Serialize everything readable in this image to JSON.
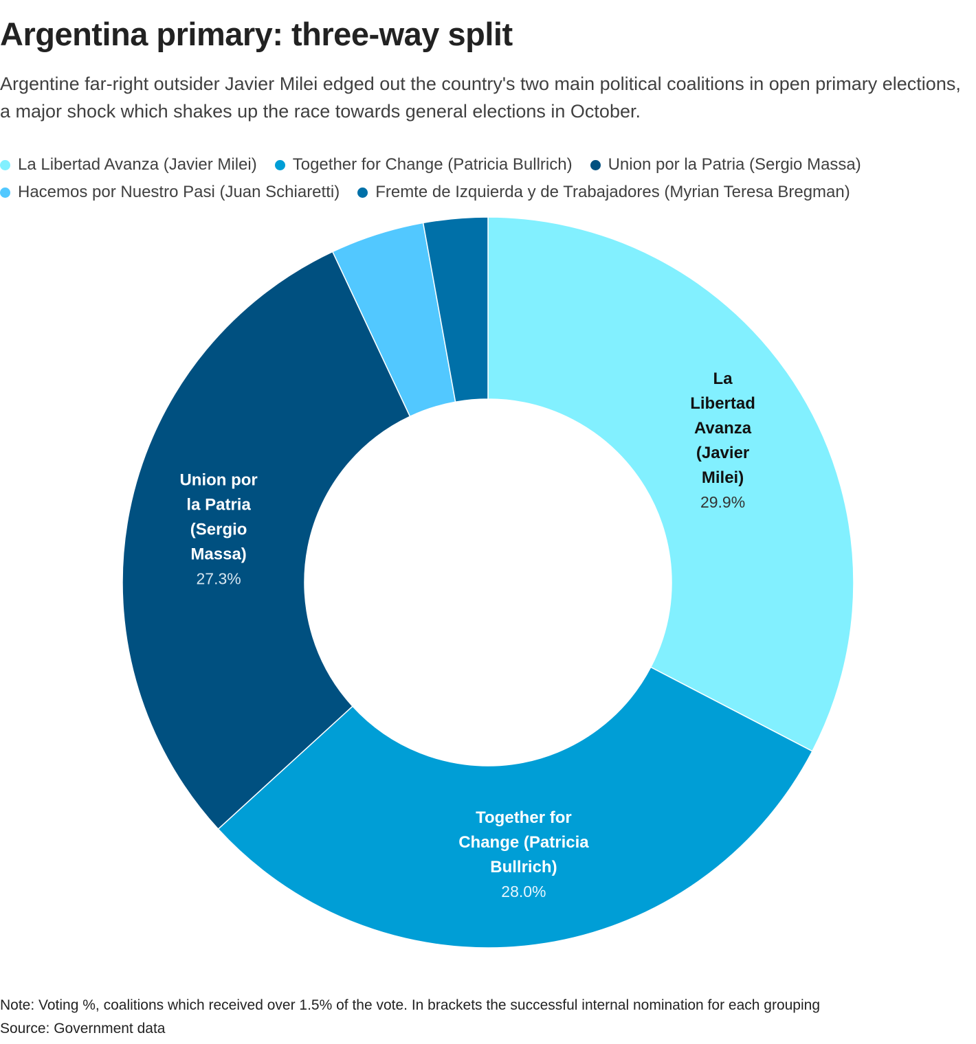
{
  "header": {
    "title": "Argentina primary: three-way split",
    "subtitle": "Argentine far-right outsider Javier Milei edged out the country's two main political coalitions in open primary elections, a major shock which shakes up the race towards general elections in October."
  },
  "legend": {
    "rows": [
      [
        {
          "label": "La Libertad Avanza (Javier Milei)",
          "color": "#82f0ff"
        },
        {
          "label": "Together for Change (Patricia Bullrich)",
          "color": "#009ed6"
        },
        {
          "label": "Union por la Patria (Sergio Massa)",
          "color": "#005080"
        }
      ],
      [
        {
          "label": "Hacemos por Nuestro Pasi (Juan Schiaretti)",
          "color": "#52c8ff"
        },
        {
          "label": "Fremte de Izquierda y de Trabajadores (Myrian Teresa Bregman)",
          "color": "#0070a8"
        }
      ]
    ]
  },
  "chart_data": {
    "type": "pie",
    "variant": "donut",
    "title": "Argentina primary: three-way split",
    "series": [
      {
        "name": "La Libertad Avanza (Javier Milei)",
        "label_lines": [
          "La",
          "Libertad",
          "Avanza",
          "(Javier",
          "Milei)"
        ],
        "value": 29.9,
        "display": "29.9%",
        "color": "#82f0ff",
        "text_color": "#111111",
        "value_color": "#333333"
      },
      {
        "name": "Together for Change (Patricia Bullrich)",
        "label_lines": [
          "Together for",
          "Change (Patricia",
          "Bullrich)"
        ],
        "value": 28.0,
        "display": "28.0%",
        "color": "#009ed6",
        "text_color": "#ffffff",
        "value_color": "#e6f6ff"
      },
      {
        "name": "Union por la Patria (Sergio Massa)",
        "label_lines": [
          "Union por",
          "la Patria",
          "(Sergio",
          "Massa)"
        ],
        "value": 27.3,
        "display": "27.3%",
        "color": "#005080",
        "text_color": "#ffffff",
        "value_color": "#d6e6f0"
      },
      {
        "name": "Hacemos por Nuestro Pasi (Juan Schiaretti)",
        "label_lines": [],
        "value": 3.8,
        "display": "",
        "color": "#52c8ff",
        "text_color": "#111111",
        "value_color": "#333333"
      },
      {
        "name": "Fremte de Izquierda y de Trabajadores (Myrian Teresa Bregman)",
        "label_lines": [],
        "value": 2.6,
        "display": "",
        "color": "#0070a8",
        "text_color": "#ffffff",
        "value_color": "#ffffff"
      }
    ]
  },
  "footer": {
    "note": "Note: Voting %, coalitions which received over 1.5% of the vote. In brackets the successful internal nomination for each grouping",
    "source": "Source: Government data"
  }
}
